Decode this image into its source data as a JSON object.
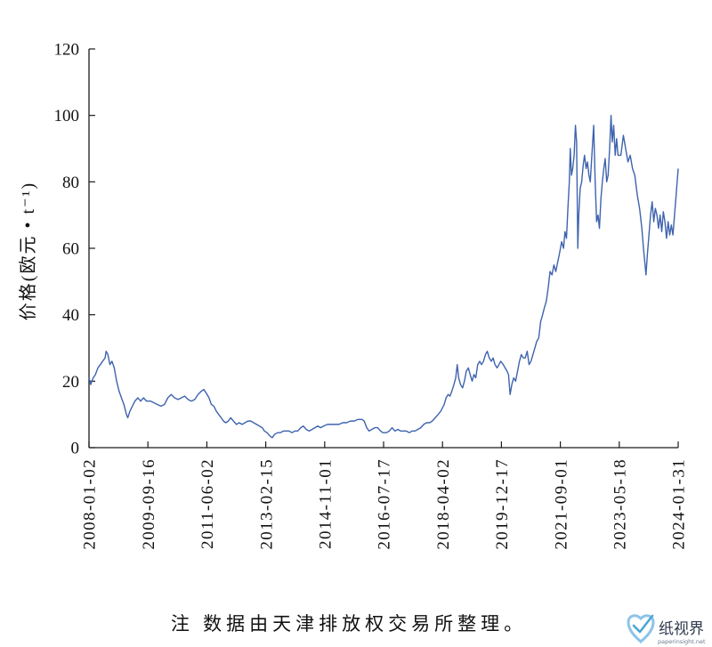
{
  "chart_data": {
    "type": "line",
    "ylabel": "价格(欧元 • t⁻¹)",
    "ylim": [
      0,
      120
    ],
    "yticks": [
      0,
      20,
      40,
      60,
      80,
      100,
      120
    ],
    "xticks": [
      "2008-01-02",
      "2009-09-16",
      "2011-06-02",
      "2013-02-15",
      "2014-11-01",
      "2016-07-17",
      "2018-04-02",
      "2019-12-17",
      "2021-09-01",
      "2023-05-18",
      "2024-01-31"
    ],
    "grid": false,
    "legend": "none",
    "x": [
      "2008-01-02",
      "2008-01-20",
      "2008-02-15",
      "2008-03-10",
      "2008-04-05",
      "2008-05-01",
      "2008-05-25",
      "2008-06-20",
      "2008-07-01",
      "2008-07-20",
      "2008-08-10",
      "2008-09-01",
      "2008-09-25",
      "2008-10-20",
      "2008-11-15",
      "2008-12-10",
      "2009-01-05",
      "2009-02-01",
      "2009-02-15",
      "2009-03-10",
      "2009-04-05",
      "2009-05-01",
      "2009-06-01",
      "2009-07-01",
      "2009-08-01",
      "2009-09-01",
      "2009-10-15",
      "2009-11-20",
      "2009-12-25",
      "2010-02-01",
      "2010-03-10",
      "2010-04-15",
      "2010-05-20",
      "2010-06-25",
      "2010-08-01",
      "2010-09-05",
      "2010-10-10",
      "2010-11-15",
      "2010-12-20",
      "2011-01-25",
      "2011-03-01",
      "2011-04-05",
      "2011-05-01",
      "2011-05-25",
      "2011-06-25",
      "2011-07-20",
      "2011-08-15",
      "2011-09-10",
      "2011-10-05",
      "2011-11-01",
      "2011-11-25",
      "2011-12-20",
      "2012-01-15",
      "2012-02-10",
      "2012-03-10",
      "2012-04-10",
      "2012-05-10",
      "2012-06-10",
      "2012-07-10",
      "2012-08-10",
      "2012-09-10",
      "2012-10-10",
      "2012-11-10",
      "2012-12-10",
      "2013-01-10",
      "2013-02-01",
      "2013-03-01",
      "2013-04-01",
      "2013-04-25",
      "2013-05-20",
      "2013-06-20",
      "2013-07-20",
      "2013-08-20",
      "2013-09-20",
      "2013-10-20",
      "2013-11-20",
      "2013-12-20",
      "2014-01-20",
      "2014-02-20",
      "2014-03-20",
      "2014-04-20",
      "2014-05-20",
      "2014-06-20",
      "2014-07-20",
      "2014-08-20",
      "2014-09-20",
      "2014-10-20",
      "2014-12-01",
      "2015-01-10",
      "2015-02-20",
      "2015-04-01",
      "2015-05-10",
      "2015-06-20",
      "2015-08-01",
      "2015-09-10",
      "2015-10-20",
      "2015-12-01",
      "2015-12-25",
      "2016-01-20",
      "2016-02-15",
      "2016-03-15",
      "2016-04-15",
      "2016-05-15",
      "2016-06-15",
      "2016-07-10",
      "2016-08-15",
      "2016-09-15",
      "2016-10-15",
      "2016-11-15",
      "2016-12-15",
      "2017-01-15",
      "2017-02-15",
      "2017-03-15",
      "2017-04-15",
      "2017-05-15",
      "2017-06-15",
      "2017-07-15",
      "2017-08-15",
      "2017-09-15",
      "2017-10-15",
      "2017-11-15",
      "2017-12-15",
      "2018-01-15",
      "2018-02-15",
      "2018-03-15",
      "2018-04-20",
      "2018-05-10",
      "2018-06-01",
      "2018-06-20",
      "2018-07-10",
      "2018-08-01",
      "2018-08-20",
      "2018-09-05",
      "2018-09-20",
      "2018-10-10",
      "2018-11-01",
      "2018-11-20",
      "2018-12-10",
      "2019-01-01",
      "2019-01-20",
      "2019-02-10",
      "2019-03-01",
      "2019-03-20",
      "2019-04-10",
      "2019-05-01",
      "2019-05-20",
      "2019-06-10",
      "2019-07-01",
      "2019-07-20",
      "2019-08-10",
      "2019-09-01",
      "2019-09-20",
      "2019-10-10",
      "2019-11-01",
      "2019-11-20",
      "2019-12-10",
      "2020-01-05",
      "2020-01-25",
      "2020-02-15",
      "2020-03-01",
      "2020-03-18",
      "2020-04-05",
      "2020-04-25",
      "2020-05-15",
      "2020-06-05",
      "2020-06-25",
      "2020-07-15",
      "2020-08-05",
      "2020-08-25",
      "2020-09-15",
      "2020-10-05",
      "2020-10-25",
      "2020-11-15",
      "2020-12-05",
      "2020-12-25",
      "2021-01-15",
      "2021-02-05",
      "2021-02-25",
      "2021-03-15",
      "2021-04-05",
      "2021-04-25",
      "2021-05-15",
      "2021-06-05",
      "2021-06-25",
      "2021-07-15",
      "2021-08-05",
      "2021-08-20",
      "2021-09-15",
      "2021-10-05",
      "2021-10-20",
      "2021-11-05",
      "2021-11-20",
      "2021-12-05",
      "2021-12-15",
      "2021-12-28",
      "2022-01-10",
      "2022-01-25",
      "2022-02-08",
      "2022-02-20",
      "2022-03-05",
      "2022-03-15",
      "2022-03-30",
      "2022-04-15",
      "2022-05-01",
      "2022-05-15",
      "2022-06-01",
      "2022-06-15",
      "2022-07-01",
      "2022-07-15",
      "2022-08-01",
      "2022-08-20",
      "2022-09-05",
      "2022-09-20",
      "2022-10-05",
      "2022-10-20",
      "2022-11-05",
      "2022-11-20",
      "2022-12-05",
      "2022-12-20",
      "2023-01-05",
      "2023-01-20",
      "2023-02-05",
      "2023-02-20",
      "2023-03-05",
      "2023-03-20",
      "2023-04-05",
      "2023-04-20",
      "2023-05-05",
      "2023-05-25",
      "2023-06-05",
      "2023-06-15",
      "2023-06-25",
      "2023-07-05",
      "2023-07-15",
      "2023-07-25",
      "2023-08-05",
      "2023-08-15",
      "2023-08-25",
      "2023-09-01",
      "2023-09-08",
      "2023-09-12",
      "2023-09-18",
      "2023-09-25",
      "2023-10-02",
      "2023-10-09",
      "2023-10-16",
      "2023-10-23",
      "2023-10-30",
      "2023-11-06",
      "2023-11-13",
      "2023-11-20",
      "2023-11-27",
      "2023-12-04",
      "2023-12-11",
      "2023-12-18",
      "2023-12-25",
      "2024-01-01",
      "2024-01-08",
      "2024-01-15",
      "2024-01-22",
      "2024-01-31"
    ],
    "series": [
      {
        "color": "#3e63ae",
        "values": [
          21,
          19,
          21,
          22,
          24,
          25,
          26,
          27,
          29,
          28,
          25,
          26,
          24,
          20,
          17,
          15,
          13,
          10,
          9,
          11,
          12.5,
          14,
          15,
          14,
          15,
          14,
          14,
          13.5,
          13,
          12.5,
          13,
          15,
          16,
          15,
          14.5,
          15,
          15.5,
          14.5,
          14,
          14.5,
          16,
          17,
          17.5,
          16.5,
          15,
          13,
          12.5,
          11,
          10,
          9,
          8,
          7.5,
          8,
          9,
          8,
          7,
          7.5,
          7,
          7.5,
          8,
          8,
          7.5,
          7,
          6.5,
          6,
          5,
          4.5,
          3.5,
          3,
          4,
          4.5,
          4.5,
          5,
          5,
          5,
          4.5,
          5,
          5,
          6,
          6.5,
          5.5,
          5,
          5.5,
          6,
          6.5,
          6,
          6.5,
          7,
          7,
          7,
          7,
          7.5,
          7.5,
          8,
          8,
          8.5,
          8.5,
          8,
          6,
          5,
          5.5,
          6,
          6,
          5,
          4.5,
          4.5,
          5,
          6,
          5,
          5.5,
          5,
          5,
          5,
          4.5,
          5,
          5,
          5.5,
          6,
          7,
          7.5,
          7.5,
          8,
          9,
          10,
          11,
          13,
          15,
          16,
          15.5,
          17,
          19,
          21,
          25,
          21,
          19,
          18,
          20,
          23,
          24,
          22,
          20,
          22,
          21,
          25,
          26,
          25,
          26,
          28,
          29,
          27,
          26,
          27,
          25,
          24,
          25,
          26,
          25,
          24,
          23,
          22,
          16,
          19,
          21,
          20,
          23,
          26,
          28,
          27,
          27,
          29,
          25,
          26,
          28,
          30,
          32,
          33,
          38,
          40,
          42,
          44,
          48,
          53,
          52,
          55,
          53,
          56,
          58,
          62,
          60,
          65,
          63,
          72,
          80,
          90,
          82,
          84,
          88,
          97,
          92,
          60,
          70,
          78,
          80,
          85,
          88,
          84,
          86,
          82,
          80,
          88,
          97,
          80,
          68,
          70,
          66,
          75,
          80,
          84,
          87,
          80,
          82,
          90,
          100,
          92,
          97,
          88,
          93,
          88,
          88,
          94,
          90,
          86,
          88,
          84,
          82,
          76,
          72,
          66,
          60,
          55,
          52,
          58,
          64,
          70,
          74,
          68,
          72,
          70,
          66,
          70,
          65,
          71,
          68,
          63,
          68,
          64,
          67,
          64,
          70,
          76,
          84
        ]
      }
    ]
  },
  "colors": {
    "line": "#3e63ae",
    "axis": "#1a1a1a",
    "text": "#111111",
    "logo": "#8cc4e8"
  },
  "footnote": "注 数据由天津排放权交易所整理。",
  "watermark": {
    "name": "纸视界",
    "url": "paperinsight.net",
    "icon": "check-heart-logo-icon"
  }
}
